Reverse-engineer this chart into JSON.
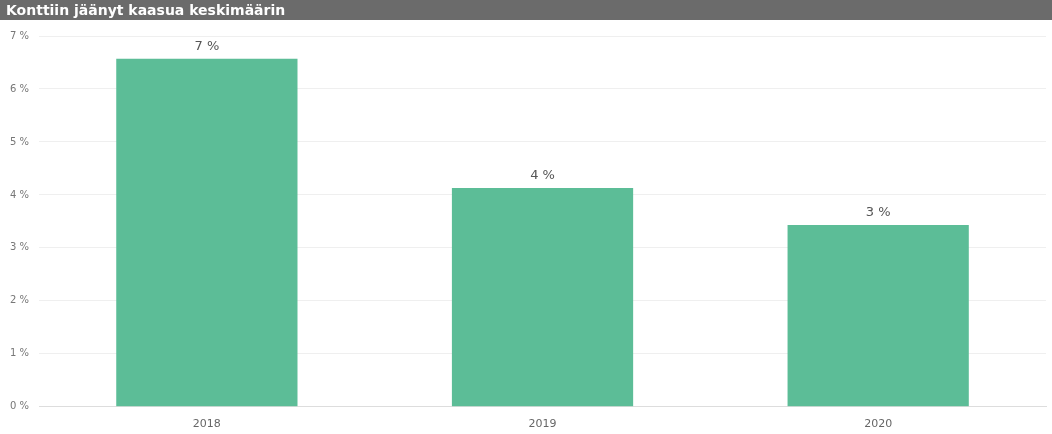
{
  "chart_data": {
    "type": "bar",
    "title": "Konttiin jäänyt kaasua keskimäärin",
    "categories": [
      "2018",
      "2019",
      "2020"
    ],
    "values": [
      6.57,
      4.13,
      3.43
    ],
    "value_labels": [
      "7 %",
      "4 %",
      "3 %"
    ],
    "color": "#5cbd97",
    "ylim": [
      0,
      7
    ],
    "yticks": [
      {
        "value": 0,
        "label": "0 %"
      },
      {
        "value": 1,
        "label": "1 %"
      },
      {
        "value": 2,
        "label": "2 %"
      },
      {
        "value": 3,
        "label": "3 %"
      },
      {
        "value": 4,
        "label": "4 %"
      },
      {
        "value": 5,
        "label": "5 %"
      },
      {
        "value": 6,
        "label": "6 %"
      },
      {
        "value": 7,
        "label": "7 %"
      }
    ],
    "grid": "y",
    "legend": false
  }
}
